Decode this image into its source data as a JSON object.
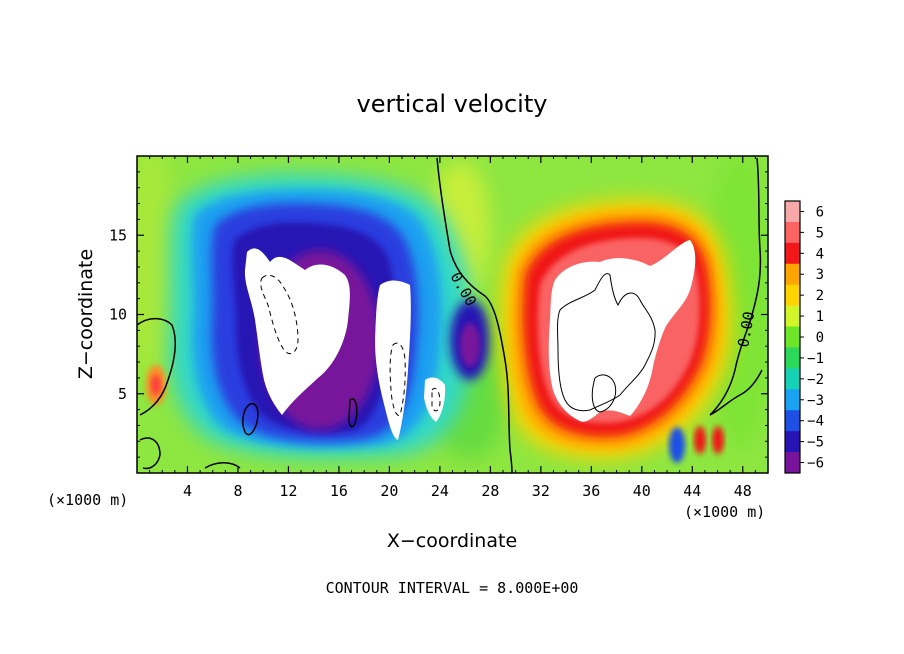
{
  "chart_data": {
    "type": "heatmap",
    "title": "vertical velocity",
    "xlabel": "X−coordinate",
    "ylabel": "Z−coordinate",
    "x_unit_left": "(×1000 m)",
    "x_unit_right": "(×1000 m)",
    "footer": "CONTOUR INTERVAL = 8.000E+00",
    "xlim": [
      0,
      50
    ],
    "ylim": [
      0,
      20
    ],
    "xticks": [
      4,
      8,
      12,
      16,
      20,
      24,
      28,
      32,
      36,
      40,
      44,
      48
    ],
    "yticks": [
      5,
      10,
      15
    ],
    "contour_labels": [
      "0.00",
      "0.00"
    ],
    "colorbar": {
      "levels": [
        "6",
        "5",
        "4",
        "3",
        "2",
        "1",
        "0",
        "−1",
        "−2",
        "−3",
        "−4",
        "−5",
        "−6"
      ],
      "colors": [
        "#f7a8a8",
        "#fa6464",
        "#f01818",
        "#ffa500",
        "#ffd200",
        "#d2f52a",
        "#6ee628",
        "#2cd85a",
        "#16d2b4",
        "#19a2f0",
        "#1e50e6",
        "#2814b4",
        "#78149b"
      ]
    },
    "field": {
      "background": "#8ee640",
      "features": [
        {
          "kind": "downdraft",
          "x": [
            10,
            23
          ],
          "z": [
            2,
            16
          ],
          "min": -6
        },
        {
          "kind": "updraft",
          "x": [
            31,
            45
          ],
          "z": [
            2,
            15
          ],
          "max": 6
        },
        {
          "kind": "updraft",
          "x": [
            0,
            2
          ],
          "z": [
            4,
            7
          ],
          "max": 3
        },
        {
          "kind": "downdraft",
          "x": [
            41,
            43
          ],
          "z": [
            1,
            3
          ],
          "min": -4
        }
      ]
    }
  }
}
